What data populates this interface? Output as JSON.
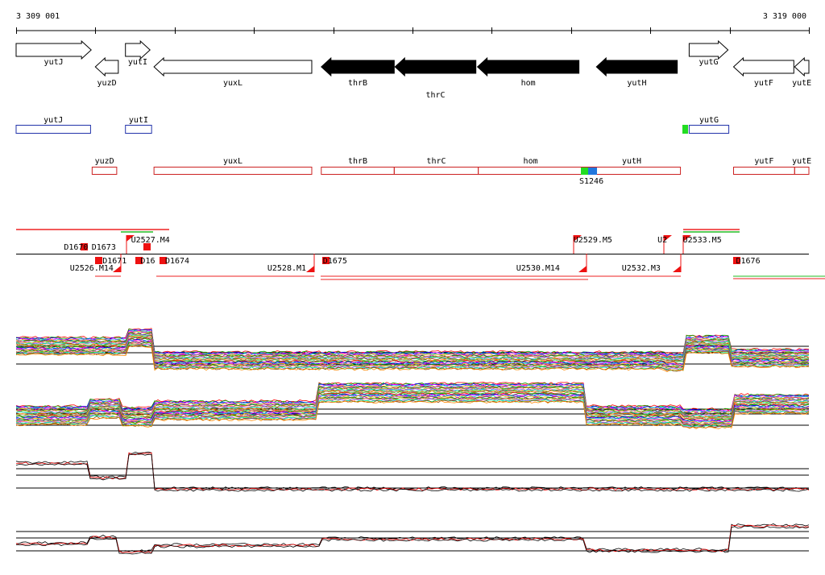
{
  "ruler": {
    "start_label": "3 309 001",
    "end_label": "3 319 000",
    "start": 3309001,
    "end": 3319000
  },
  "genes": [
    {
      "name": "yutJ",
      "from": 3309001,
      "to": 3309948,
      "strand": "+",
      "row": "top",
      "fill": "white"
    },
    {
      "name": "yuzD",
      "from": 3310000,
      "to": 3310290,
      "strand": "-",
      "row": "bottom",
      "fill": "white"
    },
    {
      "name": "yutI",
      "from": 3310380,
      "to": 3310690,
      "strand": "+",
      "row": "top",
      "fill": "white"
    },
    {
      "name": "yuxL",
      "from": 3310740,
      "to": 3312730,
      "strand": "-",
      "row": "bottom",
      "fill": "white"
    },
    {
      "name": "thrB",
      "from": 3312850,
      "to": 3313770,
      "strand": "-",
      "row": "bottom",
      "fill": "black"
    },
    {
      "name": "thrC",
      "from": 3313780,
      "to": 3314800,
      "strand": "-",
      "row": "lower",
      "fill": "black"
    },
    {
      "name": "hom",
      "from": 3314820,
      "to": 3316100,
      "strand": "-",
      "row": "bottom",
      "fill": "black"
    },
    {
      "name": "yutH",
      "from": 3316320,
      "to": 3317340,
      "strand": "-",
      "row": "bottom",
      "fill": "black"
    },
    {
      "name": "yutG",
      "from": 3317490,
      "to": 3317980,
      "strand": "+",
      "row": "top",
      "fill": "white"
    },
    {
      "name": "yutF",
      "from": 3318050,
      "to": 3318810,
      "strand": "-",
      "row": "bottom",
      "fill": "white"
    },
    {
      "name": "yutE",
      "from": 3318820,
      "to": 3319000,
      "strand": "-",
      "row": "bottom",
      "fill": "white"
    }
  ],
  "transcripts_forward": [
    {
      "name": "yutJ",
      "from": 3309001,
      "to": 3309940
    },
    {
      "name": "yutI",
      "from": 3310380,
      "to": 3310710
    },
    {
      "name": "yutG",
      "from": 3317490,
      "to": 3317990
    }
  ],
  "transcripts_reverse": [
    {
      "name": "yuzD",
      "from": 3309960,
      "to": 3310270
    },
    {
      "name": "yuxL",
      "from": 3310740,
      "to": 3312730
    },
    {
      "name": "thrB",
      "from": 3312850,
      "to": 3313770
    },
    {
      "name": "thrC",
      "from": 3313770,
      "to": 3314830
    },
    {
      "name": "hom",
      "from": 3314830,
      "to": 3316150
    },
    {
      "name": "yutH",
      "from": 3316150,
      "to": 3317380
    },
    {
      "name": "yutF",
      "from": 3318050,
      "to": 3318820
    },
    {
      "name": "yutE",
      "from": 3318820,
      "to": 3319000
    }
  ],
  "marker_label": "S1246",
  "tu_labels": [
    {
      "text": "D1670",
      "pos": 3309930,
      "row": "a"
    },
    {
      "text": "U2527.M4",
      "pos": 3310430,
      "row": "b"
    },
    {
      "text": "D1673",
      "pos": 3310280,
      "row": "c"
    },
    {
      "text": "D1671",
      "pos": 3310070,
      "row": "d"
    },
    {
      "text": "U2526.M14",
      "pos": 3310250,
      "row": "e"
    },
    {
      "text": "D16",
      "pos": 3310550,
      "row": "d"
    },
    {
      "text": "D1674",
      "pos": 3310860,
      "row": "d"
    },
    {
      "text": "U2528.M1",
      "pos": 3312680,
      "row": "e"
    },
    {
      "text": "D1675",
      "pos": 3312850,
      "row": "d"
    },
    {
      "text": "U2529.M5",
      "pos": 3316010,
      "row": "b"
    },
    {
      "text": "U2530.M14",
      "pos": 3315880,
      "row": "e"
    },
    {
      "text": "U2",
      "pos": 3317070,
      "row": "b"
    },
    {
      "text": "U2533.M5",
      "pos": 3317390,
      "row": "b"
    },
    {
      "text": "U2532.M3",
      "pos": 3317150,
      "row": "e"
    },
    {
      "text": "D1676",
      "pos": 3318060,
      "row": "d"
    }
  ],
  "colors": {
    "forward": "#2233aa",
    "reverse": "#cc2222",
    "tu": "#ee1111"
  }
}
